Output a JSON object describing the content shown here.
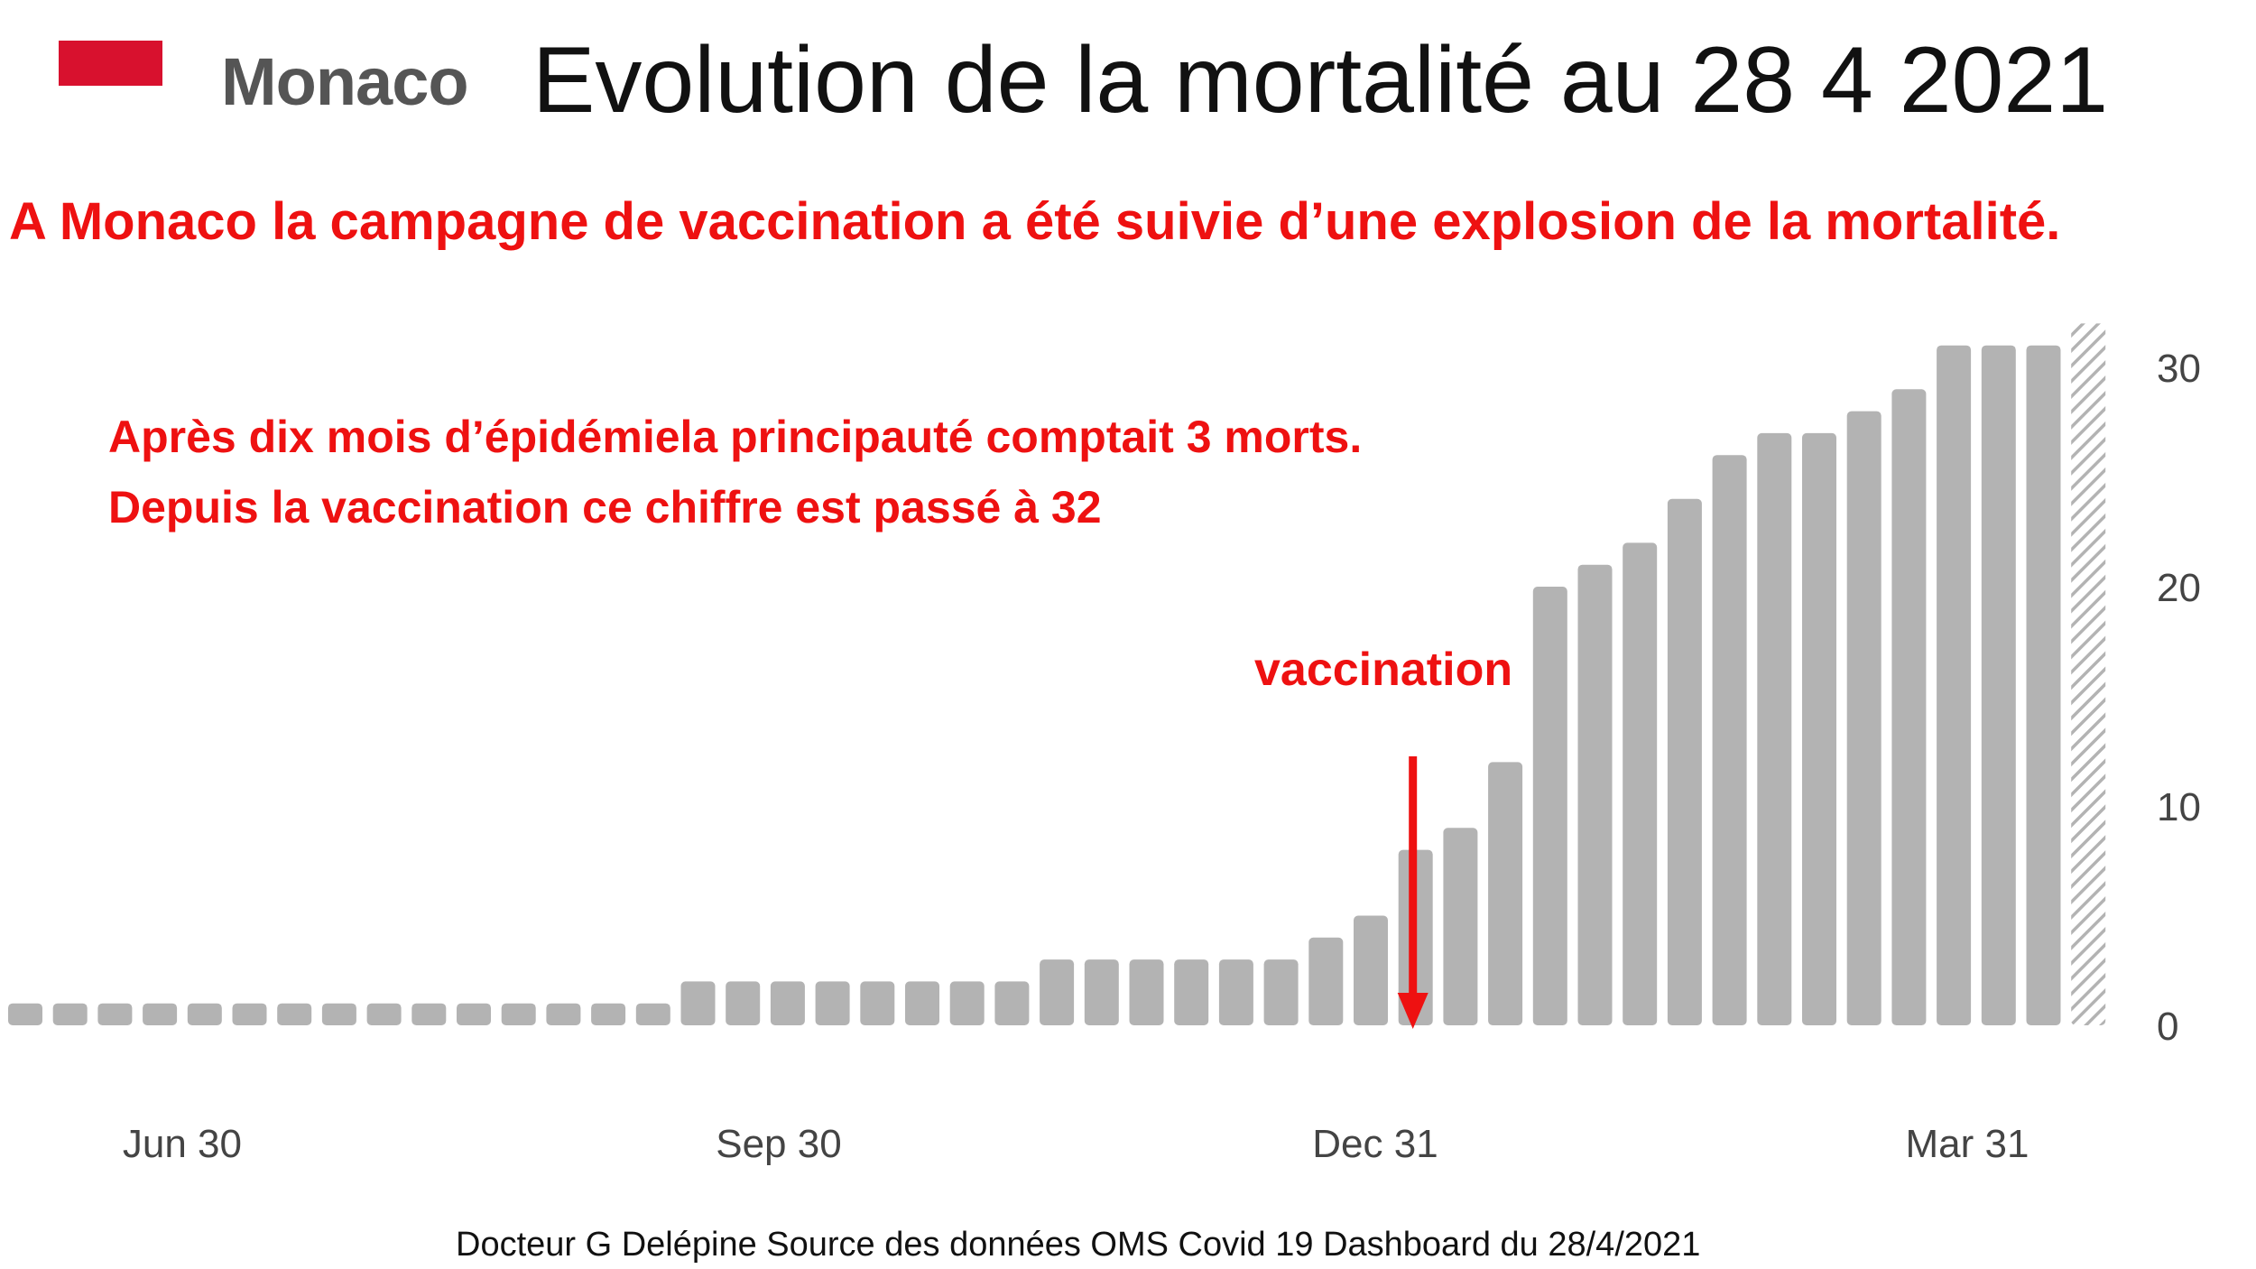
{
  "header": {
    "country": "Monaco",
    "title": "Evolution de la mortalité au 28 4 2021",
    "flag_color": "#d8112e"
  },
  "subtitle": "A Monaco la campagne de vaccination a été suivie d’une explosion de la mortalité.",
  "annotations": {
    "line1": "Après dix mois d’épidémiela principauté comptait 3 morts.",
    "line2": "Depuis la vaccination ce chiffre est passé à 32",
    "vaccination_label": "vaccination",
    "vaccination_week_index": 31
  },
  "source": "Docteur G Delépine Source des données OMS Covid 19 Dashboard du 28/4/2021",
  "colors": {
    "bar": "#b3b3b3",
    "accent": "#ee1111",
    "axis_text": "#444444"
  },
  "chart_data": {
    "type": "bar",
    "title": "",
    "xlabel": "",
    "ylabel": "",
    "ylim": [
      0,
      32
    ],
    "y_ticks": [
      0,
      10,
      20,
      30
    ],
    "x_tick_labels": [
      {
        "label": "Jun 30",
        "index": 3.5
      },
      {
        "label": "Sep 30",
        "index": 16.8
      },
      {
        "label": "Dec 31",
        "index": 30.1
      },
      {
        "label": "Mar 31",
        "index": 43.3
      }
    ],
    "values": [
      1,
      1,
      1,
      1,
      1,
      1,
      1,
      1,
      1,
      1,
      1,
      1,
      1,
      1,
      1,
      2,
      2,
      2,
      2,
      2,
      2,
      2,
      2,
      3,
      3,
      3,
      3,
      3,
      3,
      4,
      5,
      8,
      9,
      12,
      20,
      21,
      22,
      24,
      26,
      27,
      27,
      28,
      29,
      31,
      31,
      31,
      32
    ],
    "last_bar_partial": true,
    "grid": false
  }
}
